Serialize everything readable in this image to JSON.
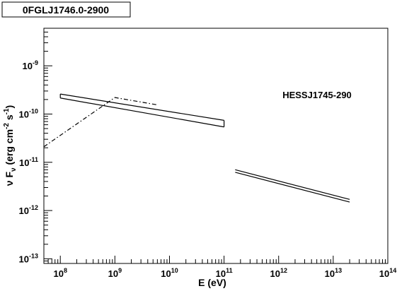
{
  "chart_data": {
    "type": "line",
    "title": "0FGLJ1746.0-2900",
    "annotation": "HESSJ1745-290",
    "xlabel": "E (eV)",
    "ylabel": {
      "base": "ν F",
      "sub": "ν",
      "main": " (erg cm",
      "sup1": "-2",
      "mid": " s",
      "sup2": "-1",
      "end": ")"
    },
    "xscale": "log",
    "yscale": "log",
    "xlim": [
      50000000.0,
      100000000000000.0
    ],
    "ylim": [
      8e-14,
      6e-09
    ],
    "xticks": [
      {
        "v": 100000000.0,
        "b": "10",
        "e": "8"
      },
      {
        "v": 1000000000.0,
        "b": "10",
        "e": "9"
      },
      {
        "v": 10000000000.0,
        "b": "10",
        "e": "10"
      },
      {
        "v": 100000000000.0,
        "b": "10",
        "e": "11"
      },
      {
        "v": 1000000000000.0,
        "b": "10",
        "e": "12"
      },
      {
        "v": 10000000000000.0,
        "b": "10",
        "e": "13"
      },
      {
        "v": 100000000000000.0,
        "b": "10",
        "e": "14"
      }
    ],
    "yticks": [
      {
        "v": 1e-13,
        "b": "10",
        "e": "-13"
      },
      {
        "v": 1e-12,
        "b": "10",
        "e": "-12"
      },
      {
        "v": 1e-11,
        "b": "10",
        "e": "-11"
      },
      {
        "v": 1e-10,
        "b": "10",
        "e": "-10"
      },
      {
        "v": 1e-09,
        "b": "10",
        "e": "-9"
      }
    ],
    "series": [
      {
        "style": "solid",
        "x": [
          100000000.0,
          100000000000.0
        ],
        "y": [
          2.6e-10,
          7.4e-11
        ]
      },
      {
        "style": "solid",
        "x": [
          100000000.0,
          100000000000.0
        ],
        "y": [
          2.15e-10,
          5.4e-11
        ]
      },
      {
        "style": "solid",
        "x": [
          100000000.0,
          100000000.0
        ],
        "y": [
          2.15e-10,
          2.6e-10
        ]
      },
      {
        "style": "solid",
        "x": [
          100000000000.0,
          100000000000.0
        ],
        "y": [
          5.4e-11,
          7.4e-11
        ]
      },
      {
        "style": "solid",
        "x": [
          160000000000.0,
          20000000000000.0
        ],
        "y": [
          7e-12,
          1.7e-12
        ]
      },
      {
        "style": "solid",
        "x": [
          160000000000.0,
          20000000000000.0
        ],
        "y": [
          6.2e-12,
          1.5e-12
        ]
      },
      {
        "style": "dashdot",
        "x": [
          50000000.0,
          1000000000.0,
          6000000000.0
        ],
        "y": [
          2.1e-11,
          2.2e-10,
          1.55e-10
        ]
      }
    ]
  }
}
